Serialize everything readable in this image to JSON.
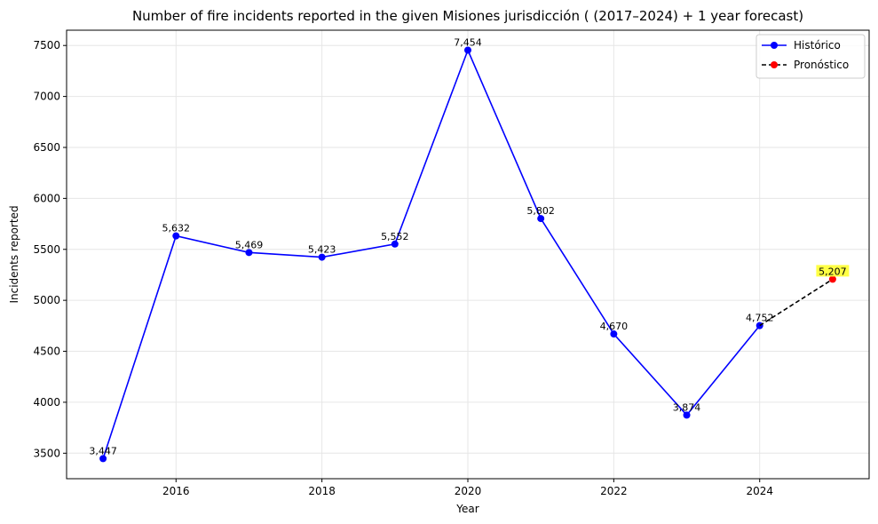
{
  "chart_data": {
    "type": "line",
    "title": "Number of fire incidents reported in the given Misiones jurisdicción  ( (2017–2024)  + 1 year forecast)",
    "xlabel": "Year",
    "ylabel": "Incidents reported",
    "xlim": [
      2014.5,
      2025.5
    ],
    "ylim": [
      3250,
      7650
    ],
    "xticks": [
      2016,
      2018,
      2020,
      2022,
      2024
    ],
    "yticks": [
      3500,
      4000,
      4500,
      5000,
      5500,
      6000,
      6500,
      7000,
      7500
    ],
    "grid": true,
    "legend_position": "top-right",
    "series": [
      {
        "name": "Histórico",
        "color": "#0000ff",
        "line_style": "solid",
        "marker": "circle",
        "points": [
          {
            "x": 2015,
            "y": 3447,
            "label": "3,447"
          },
          {
            "x": 2016,
            "y": 5632,
            "label": "5,632"
          },
          {
            "x": 2017,
            "y": 5469,
            "label": "5,469"
          },
          {
            "x": 2018,
            "y": 5423,
            "label": "5,423"
          },
          {
            "x": 2019,
            "y": 5552,
            "label": "5,552"
          },
          {
            "x": 2020,
            "y": 7454,
            "label": "7,454"
          },
          {
            "x": 2021,
            "y": 5802,
            "label": "5,802"
          },
          {
            "x": 2022,
            "y": 4670,
            "label": "4,670"
          },
          {
            "x": 2023,
            "y": 3874,
            "label": "3,874"
          },
          {
            "x": 2024,
            "y": 4752,
            "label": "4,752"
          }
        ]
      },
      {
        "name": "Pronóstico",
        "color": "#ff0000",
        "line_color": "#000000",
        "line_style": "dashed",
        "marker": "circle",
        "highlight_color": "#ffff44",
        "points": [
          {
            "x": 2024,
            "y": 4752,
            "label": ""
          },
          {
            "x": 2025,
            "y": 5207,
            "label": "5,207"
          }
        ]
      }
    ]
  }
}
